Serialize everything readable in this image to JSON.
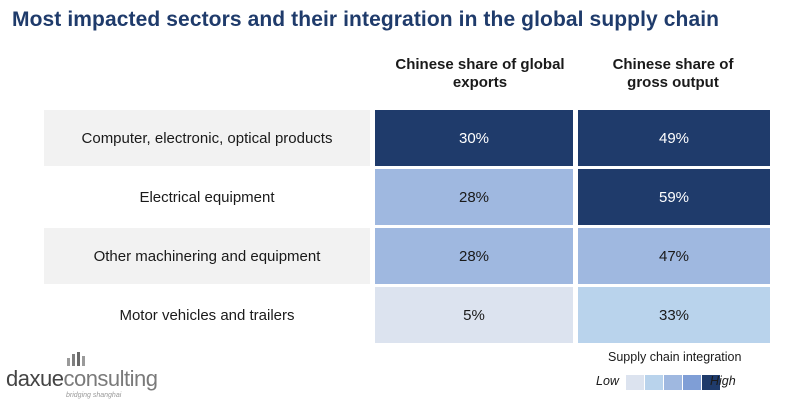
{
  "title": "Most impacted sectors and their integration in the global supply chain",
  "chart_data": {
    "type": "table",
    "columns": [
      {
        "label_line1": "Chinese share of global",
        "label_line2": "exports"
      },
      {
        "label_line1": "Chinese share of",
        "label_line2": "gross output"
      }
    ],
    "rows": [
      {
        "label": "Computer, electronic, optical products",
        "values": [
          "30%",
          "49%"
        ],
        "levels": [
          5,
          5
        ]
      },
      {
        "label": "Electrical equipment",
        "values": [
          "28%",
          "59%"
        ],
        "levels": [
          3,
          5
        ]
      },
      {
        "label": "Other machinering and equipment",
        "values": [
          "28%",
          "47%"
        ],
        "levels": [
          3,
          3
        ]
      },
      {
        "label": "Motor vehicles and trailers",
        "values": [
          "5%",
          "33%"
        ],
        "levels": [
          1,
          2
        ]
      }
    ]
  },
  "legend": {
    "title": "Supply chain integration",
    "low_label": "Low",
    "high_label": "High",
    "colors": [
      "#dce3ef",
      "#b9d3ec",
      "#9fb8e0",
      "#7f9ed6",
      "#1f3b6b"
    ]
  },
  "logo": {
    "text_a": "daxue",
    "text_b": "consulting",
    "tagline": "bridging shanghai"
  }
}
